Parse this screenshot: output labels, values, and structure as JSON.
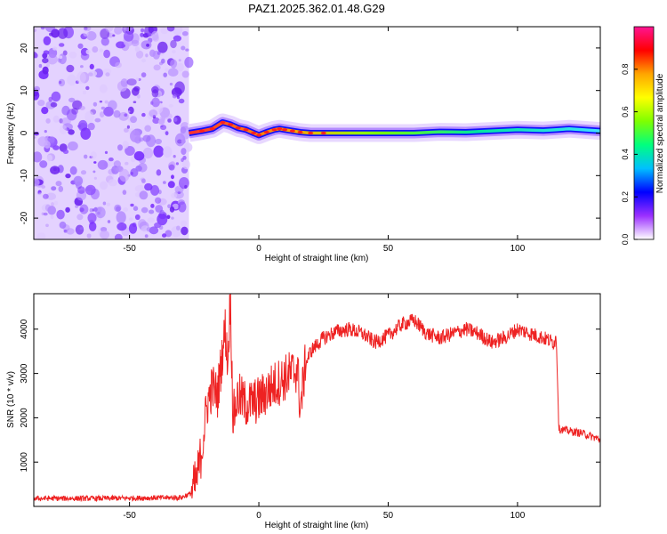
{
  "figure_title": "PAZ1.2025.362.01.48.G29",
  "chart_data": [
    {
      "type": "heatmap",
      "title": "PAZ1.2025.362.01.48.G29",
      "xlabel": "Height of straight line (km)",
      "ylabel": "Frequency (Hz)",
      "xlim": [
        -87,
        132
      ],
      "ylim": [
        -25,
        25
      ],
      "x_ticks": [
        "-50",
        "0",
        "50",
        "100"
      ],
      "y_ticks": [
        "20",
        "10",
        "0",
        "-10",
        "-20"
      ],
      "noise_region_x": [
        -87,
        -27
      ],
      "signal_trace": {
        "x": [
          -27,
          -22,
          -18,
          -14,
          -11,
          -8,
          -5,
          -2,
          0,
          3,
          6,
          8,
          10,
          13,
          16,
          20,
          25,
          30,
          40,
          50,
          60,
          70,
          80,
          90,
          100,
          110,
          115,
          120,
          125,
          132
        ],
        "frequency_hz": [
          0,
          0.5,
          1.0,
          2.5,
          2.0,
          1.2,
          0.8,
          0,
          -0.5,
          0.2,
          0.8,
          1.0,
          0.8,
          0.5,
          0.2,
          0,
          0,
          0,
          0,
          0,
          0,
          0.3,
          0.2,
          0.5,
          0.8,
          0.6,
          0.8,
          1.0,
          0.8,
          0.5
        ]
      },
      "colorbar": {
        "label": "Normalized spectral amplitude",
        "range": [
          0,
          1
        ],
        "ticks": [
          "0.0",
          "0.2",
          "0.4",
          "0.6",
          "0.8"
        ],
        "colors": [
          "#ffffff",
          "#9b30ff",
          "#0000ff",
          "#00bfff",
          "#00ff7f",
          "#7fff00",
          "#ffff00",
          "#ffa500",
          "#ff0000",
          "#ff1493"
        ]
      }
    },
    {
      "type": "line",
      "xlabel": "Height of straight line (km)",
      "ylabel": "SNR (10 * v/v)",
      "xlim": [
        -87,
        132
      ],
      "ylim": [
        0,
        4800
      ],
      "x_ticks": [
        "-50",
        "0",
        "50",
        "100"
      ],
      "y_ticks": [
        "1000",
        "2000",
        "3000",
        "4000"
      ],
      "color": "#ee2222",
      "series": [
        {
          "name": "SNR",
          "x": [
            -87,
            -60,
            -30,
            -26,
            -24,
            -22,
            -20,
            -18,
            -16,
            -14,
            -13,
            -12,
            -11,
            -10,
            -8,
            -5,
            0,
            5,
            10,
            15,
            16,
            18,
            20,
            25,
            30,
            35,
            40,
            45,
            50,
            55,
            60,
            65,
            70,
            75,
            80,
            85,
            90,
            95,
            100,
            105,
            110,
            114,
            115,
            116,
            120,
            125,
            130,
            132
          ],
          "y": [
            180,
            180,
            200,
            300,
            600,
            1300,
            2300,
            2700,
            2500,
            3500,
            4000,
            3200,
            4800,
            2000,
            2500,
            2300,
            2400,
            2700,
            2900,
            3100,
            2200,
            3200,
            3500,
            3800,
            3950,
            4000,
            3900,
            3700,
            3850,
            4100,
            4200,
            3900,
            3800,
            3900,
            4000,
            3900,
            3700,
            3800,
            4000,
            3900,
            3800,
            3700,
            3800,
            1750,
            1700,
            1650,
            1550,
            1500
          ]
        }
      ]
    }
  ]
}
